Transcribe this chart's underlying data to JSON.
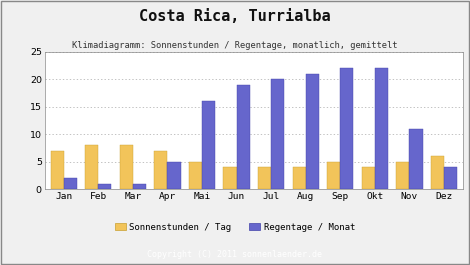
{
  "title": "Costa Rica, Turrialba",
  "subtitle": "Klimadiagramm: Sonnenstunden / Regentage, monatlich, gemittelt",
  "months": [
    "Jan",
    "Feb",
    "Mar",
    "Apr",
    "Mai",
    "Jun",
    "Jul",
    "Aug",
    "Sep",
    "Okt",
    "Nov",
    "Dez"
  ],
  "sonnenstunden": [
    7,
    8,
    8,
    7,
    5,
    4,
    4,
    4,
    5,
    4,
    5,
    6
  ],
  "regentage": [
    2,
    1,
    1,
    5,
    16,
    19,
    20,
    21,
    22,
    22,
    11,
    4
  ],
  "sun_color": "#F2C45A",
  "rain_color": "#6666CC",
  "bg_color": "#F0F0F0",
  "plot_bg": "#FFFFFF",
  "footer_bg": "#BBBBBB",
  "footer_text": "Copyright (C) 2011 sonnenlaender.de",
  "legend_sun": "Sonnenstunden / Tag",
  "legend_rain": "Regentage / Monat",
  "ylim": [
    0,
    25
  ],
  "yticks": [
    0,
    5,
    10,
    15,
    20,
    25
  ],
  "bar_width": 0.38
}
